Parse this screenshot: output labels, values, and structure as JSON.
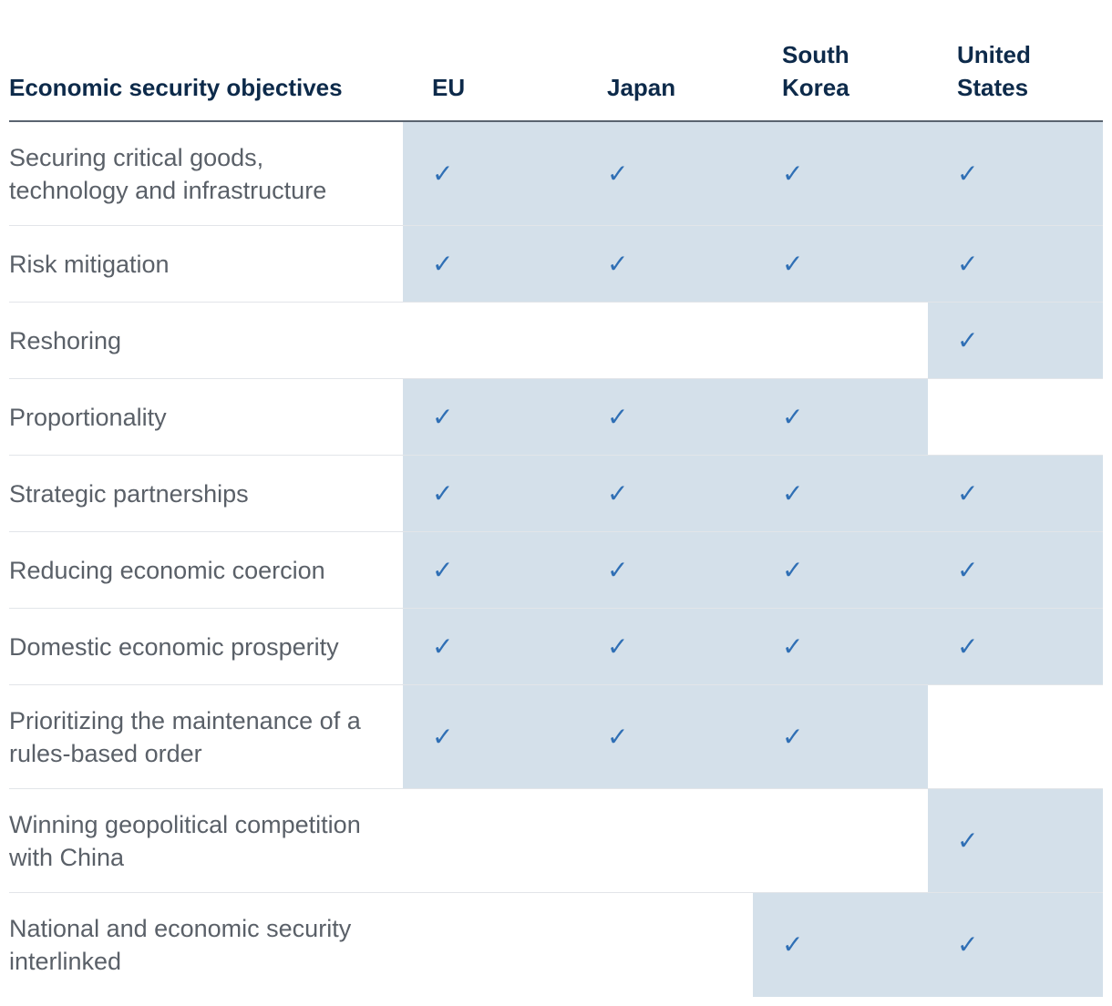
{
  "chart_data": {
    "type": "table",
    "header": {
      "objective": "Economic security objectives",
      "columns": [
        "EU",
        "Japan",
        "South\nKorea",
        "United\nStates"
      ]
    },
    "check_symbol": "✓",
    "rows": [
      {
        "label": "Securing critical goods, technology and infrastructure",
        "values": [
          true,
          true,
          true,
          true
        ]
      },
      {
        "label": "Risk mitigation",
        "values": [
          true,
          true,
          true,
          true
        ]
      },
      {
        "label": "Reshoring",
        "values": [
          false,
          false,
          false,
          true
        ]
      },
      {
        "label": "Proportionality",
        "values": [
          true,
          true,
          true,
          false
        ]
      },
      {
        "label": "Strategic partnerships",
        "values": [
          true,
          true,
          true,
          true
        ]
      },
      {
        "label": "Reducing economic coercion",
        "values": [
          true,
          true,
          true,
          true
        ]
      },
      {
        "label": "Domestic economic prosperity",
        "values": [
          true,
          true,
          true,
          true
        ]
      },
      {
        "label": "Prioritizing the maintenance of a rules-based order",
        "values": [
          true,
          true,
          true,
          false
        ]
      },
      {
        "label": "Winning geopolitical competition with China",
        "values": [
          false,
          false,
          false,
          true
        ]
      },
      {
        "label": "National and economic security interlinked",
        "values": [
          false,
          false,
          true,
          true
        ]
      }
    ],
    "colors": {
      "header_text": "#0d2a4a",
      "label_text": "#5a6068",
      "check": "#2f6fb5",
      "highlight": "#d4e0ea"
    }
  }
}
